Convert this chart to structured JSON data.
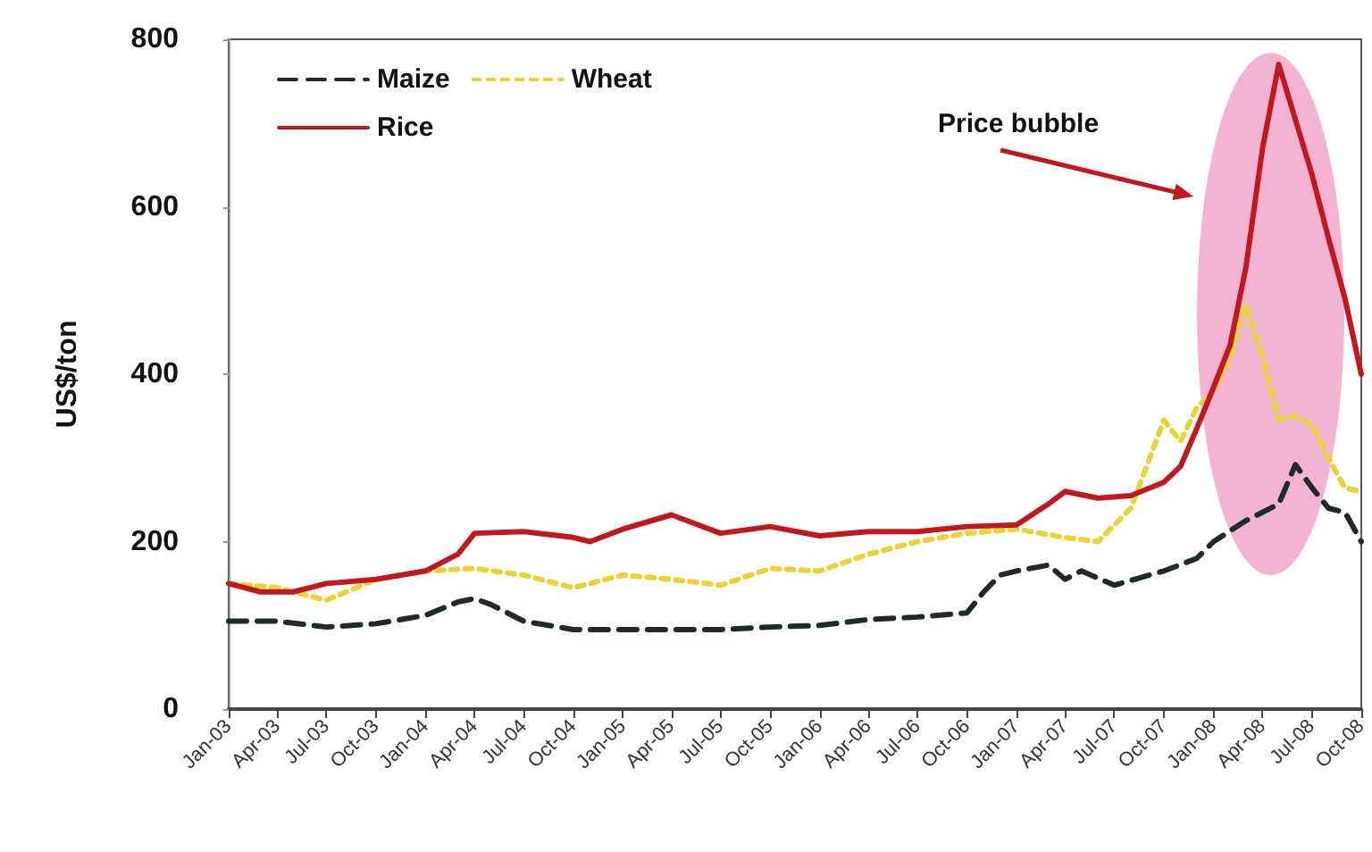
{
  "chart_data": {
    "type": "line",
    "ylabel": "US$/ton",
    "ylim": [
      0,
      800
    ],
    "yticks": [
      0,
      200,
      400,
      600,
      800
    ],
    "xlim": [
      "2003-01",
      "2008-10"
    ],
    "xticks": [
      {
        "value": "2003-01",
        "label": "Jan-03"
      },
      {
        "value": "2003-04",
        "label": "Apr-03"
      },
      {
        "value": "2003-07",
        "label": "Jul-03"
      },
      {
        "value": "2003-10",
        "label": "Oct-03"
      },
      {
        "value": "2004-01",
        "label": "Jan-04"
      },
      {
        "value": "2004-04",
        "label": "Apr-04"
      },
      {
        "value": "2004-07",
        "label": "Jul-04"
      },
      {
        "value": "2004-10",
        "label": "Oct-04"
      },
      {
        "value": "2005-01",
        "label": "Jan-05"
      },
      {
        "value": "2005-04",
        "label": "Apr-05"
      },
      {
        "value": "2005-07",
        "label": "Jul-05"
      },
      {
        "value": "2005-10",
        "label": "Oct-05"
      },
      {
        "value": "2006-01",
        "label": "Jan-06"
      },
      {
        "value": "2006-04",
        "label": "Apr-06"
      },
      {
        "value": "2006-07",
        "label": "Jul-06"
      },
      {
        "value": "2006-10",
        "label": "Oct-06"
      },
      {
        "value": "2007-01",
        "label": "Jan-07"
      },
      {
        "value": "2007-04",
        "label": "Apr-07"
      },
      {
        "value": "2007-07",
        "label": "Jul-07"
      },
      {
        "value": "2007-10",
        "label": "Oct-07"
      },
      {
        "value": "2008-01",
        "label": "Jan-08"
      },
      {
        "value": "2008-04",
        "label": "Apr-08"
      },
      {
        "value": "2008-07",
        "label": "Jul-08"
      },
      {
        "value": "2008-10",
        "label": "Oct-08"
      }
    ],
    "grid": false,
    "legend": "top left",
    "marker": "none",
    "series": [
      {
        "name": "Maize",
        "color": "#1f2a2a",
        "line_style": "dashed",
        "x": [
          "2003-01",
          "2003-04",
          "2003-07",
          "2003-10",
          "2004-01",
          "2004-03",
          "2004-04",
          "2004-05",
          "2004-07",
          "2004-10",
          "2005-01",
          "2005-07",
          "2005-10",
          "2006-01",
          "2006-04",
          "2006-07",
          "2006-10",
          "2006-11",
          "2006-12",
          "2007-01",
          "2007-03",
          "2007-04",
          "2007-05",
          "2007-07",
          "2007-10",
          "2007-12",
          "2008-01",
          "2008-03",
          "2008-05",
          "2008-06",
          "2008-07",
          "2008-08",
          "2008-09",
          "2008-10"
        ],
        "values": [
          105,
          105,
          98,
          102,
          112,
          128,
          132,
          125,
          105,
          95,
          95,
          95,
          98,
          100,
          107,
          110,
          115,
          140,
          160,
          165,
          172,
          155,
          165,
          148,
          165,
          180,
          200,
          225,
          245,
          292,
          265,
          240,
          235,
          200
        ]
      },
      {
        "name": "Wheat",
        "color": "#e8d43a",
        "line_style": "dotted",
        "x": [
          "2003-01",
          "2003-04",
          "2003-07",
          "2003-10",
          "2004-01",
          "2004-04",
          "2004-07",
          "2004-10",
          "2005-01",
          "2005-04",
          "2005-07",
          "2005-10",
          "2006-01",
          "2006-04",
          "2006-07",
          "2006-10",
          "2007-01",
          "2007-04",
          "2007-06",
          "2007-08",
          "2007-10",
          "2007-11",
          "2007-12",
          "2008-01",
          "2008-02",
          "2008-03",
          "2008-04",
          "2008-05",
          "2008-06",
          "2008-07",
          "2008-08",
          "2008-09",
          "2008-10"
        ],
        "values": [
          150,
          145,
          130,
          155,
          165,
          168,
          160,
          145,
          160,
          155,
          148,
          168,
          165,
          185,
          200,
          210,
          215,
          205,
          200,
          240,
          345,
          320,
          360,
          380,
          420,
          484,
          420,
          345,
          350,
          340,
          300,
          264,
          260
        ]
      },
      {
        "name": "Rice",
        "color": "#c0181e",
        "line_style": "solid",
        "x": [
          "2003-01",
          "2003-03",
          "2003-05",
          "2003-07",
          "2003-10",
          "2004-01",
          "2004-03",
          "2004-04",
          "2004-07",
          "2004-10",
          "2004-11",
          "2005-01",
          "2005-04",
          "2005-07",
          "2005-10",
          "2006-01",
          "2006-04",
          "2006-07",
          "2006-10",
          "2007-01",
          "2007-03",
          "2007-04",
          "2007-06",
          "2007-08",
          "2007-10",
          "2007-11",
          "2007-12",
          "2008-01",
          "2008-02",
          "2008-03",
          "2008-04",
          "2008-05",
          "2008-07",
          "2008-08",
          "2008-09",
          "2008-10"
        ],
        "values": [
          150,
          140,
          140,
          150,
          155,
          165,
          185,
          210,
          212,
          205,
          200,
          215,
          232,
          210,
          218,
          207,
          212,
          212,
          218,
          220,
          245,
          260,
          252,
          255,
          271,
          290,
          335,
          384,
          435,
          527,
          670,
          770,
          640,
          563,
          490,
          400
        ]
      }
    ],
    "annotations": [
      "Price bubble"
    ]
  }
}
